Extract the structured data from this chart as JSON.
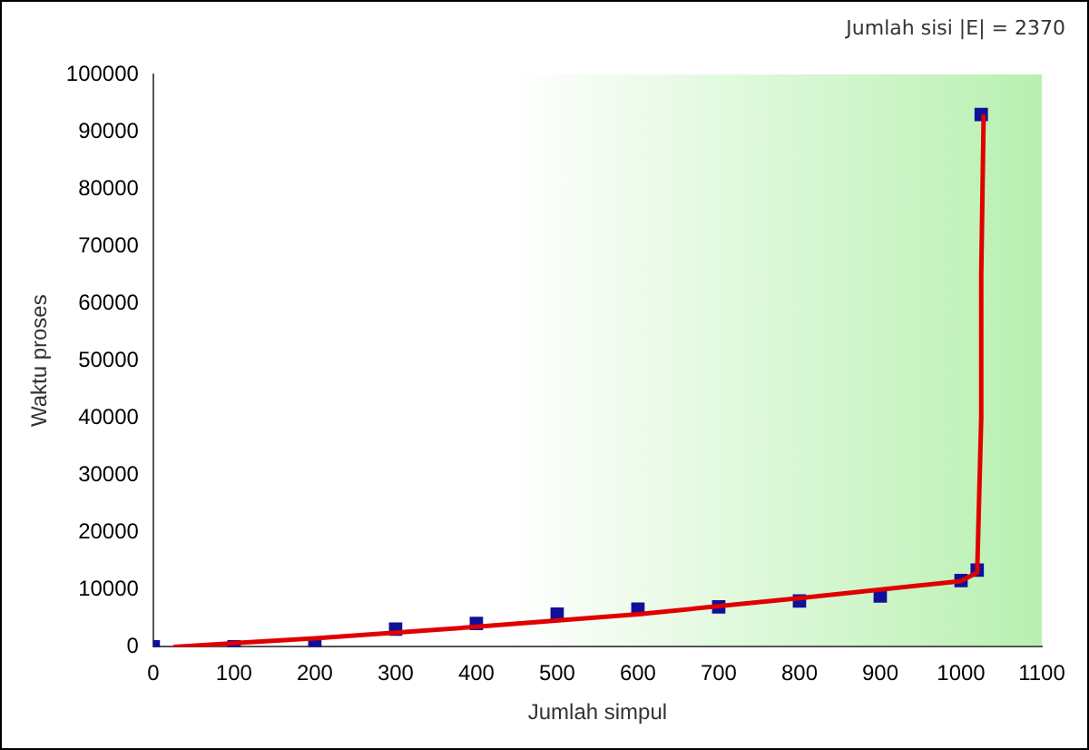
{
  "chart_data": {
    "type": "scatter",
    "xlabel": "Jumlah simpul",
    "ylabel": "Waktu proses",
    "annotations": [
      "Jumlah sisi |E| = 2370"
    ],
    "xlim": [
      0,
      1100
    ],
    "xticks": [
      0,
      100,
      200,
      300,
      400,
      500,
      600,
      700,
      800,
      900,
      1000,
      1100
    ],
    "ylim": [
      0,
      100000
    ],
    "yticks": [
      0,
      10000,
      20000,
      30000,
      40000,
      50000,
      60000,
      70000,
      80000,
      90000,
      100000
    ],
    "grid": false,
    "legend": false,
    "marker": "square",
    "series": [
      {
        "color": "#10109a",
        "x": [
          0,
          100,
          200,
          300,
          400,
          500,
          600,
          700,
          800,
          900,
          1000,
          1020,
          1025
        ],
        "values": [
          0,
          0,
          0,
          3100,
          4100,
          5700,
          6600,
          7000,
          8000,
          8900,
          11600,
          13400,
          93000
        ]
      },
      {
        "type": "line",
        "color": "#e00000",
        "marker": "none",
        "x": [
          25,
          200,
          400,
          600,
          800,
          1000,
          1020,
          1025,
          1025,
          1028
        ],
        "values": [
          0,
          1500,
          3500,
          5700,
          8500,
          11500,
          13000,
          40000,
          65000,
          93000
        ]
      }
    ]
  }
}
